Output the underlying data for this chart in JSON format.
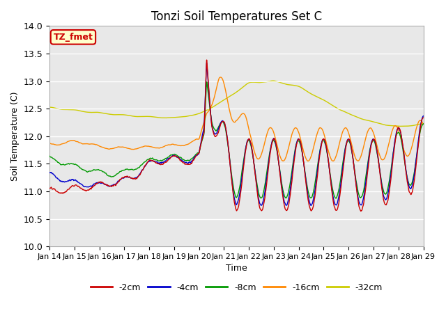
{
  "title": "Tonzi Soil Temperatures Set C",
  "xlabel": "Time",
  "ylabel": "Soil Temperature (C)",
  "ylim": [
    10.0,
    14.0
  ],
  "yticks": [
    10.0,
    10.5,
    11.0,
    11.5,
    12.0,
    12.5,
    13.0,
    13.5,
    14.0
  ],
  "x_tick_labels": [
    "Jan 14",
    "Jan 15",
    "Jan 16",
    "Jan 17",
    "Jan 18",
    "Jan 19",
    "Jan 20",
    "Jan 21",
    "Jan 22",
    "Jan 23",
    "Jan 24",
    "Jan 25",
    "Jan 26",
    "Jan 27",
    "Jan 28",
    "Jan 29"
  ],
  "series_colors": [
    "#cc0000",
    "#0000cc",
    "#009900",
    "#ff8800",
    "#cccc00"
  ],
  "series_names": [
    "-2cm",
    "-4cm",
    "-8cm",
    "-16cm",
    "-32cm"
  ],
  "legend_label": "TZ_fmet",
  "legend_box_color": "#ffffcc",
  "legend_box_edge": "#cc0000",
  "bg_color": "#e8e8e8",
  "line_width": 1.0,
  "n_points": 4320,
  "days": 15
}
